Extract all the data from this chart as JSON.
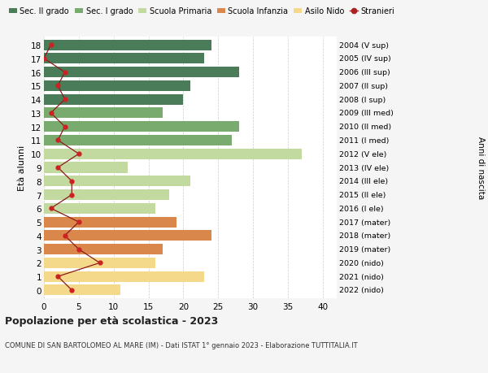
{
  "ages": [
    18,
    17,
    16,
    15,
    14,
    13,
    12,
    11,
    10,
    9,
    8,
    7,
    6,
    5,
    4,
    3,
    2,
    1,
    0
  ],
  "right_labels": [
    "2004 (V sup)",
    "2005 (IV sup)",
    "2006 (III sup)",
    "2007 (II sup)",
    "2008 (I sup)",
    "2009 (III med)",
    "2010 (II med)",
    "2011 (I med)",
    "2012 (V ele)",
    "2013 (IV ele)",
    "2014 (III ele)",
    "2015 (II ele)",
    "2016 (I ele)",
    "2017 (mater)",
    "2018 (mater)",
    "2019 (mater)",
    "2020 (nido)",
    "2021 (nido)",
    "2022 (nido)"
  ],
  "bar_values": [
    24,
    23,
    28,
    21,
    20,
    17,
    28,
    27,
    37,
    12,
    21,
    18,
    16,
    19,
    24,
    17,
    16,
    23,
    11
  ],
  "bar_colors": [
    "#4a7c59",
    "#4a7c59",
    "#4a7c59",
    "#4a7c59",
    "#4a7c59",
    "#7aab6e",
    "#7aab6e",
    "#7aab6e",
    "#c2d9a0",
    "#c2d9a0",
    "#c2d9a0",
    "#c2d9a0",
    "#c2d9a0",
    "#d9874a",
    "#d9874a",
    "#d9874a",
    "#f5d98a",
    "#f5d98a",
    "#f5d98a"
  ],
  "stranieri_values": [
    1,
    0,
    3,
    2,
    3,
    1,
    3,
    2,
    5,
    2,
    4,
    4,
    1,
    5,
    3,
    5,
    8,
    2,
    4
  ],
  "legend_labels": [
    "Sec. II grado",
    "Sec. I grado",
    "Scuola Primaria",
    "Scuola Infanzia",
    "Asilo Nido",
    "Stranieri"
  ],
  "legend_colors": [
    "#4a7c59",
    "#7aab6e",
    "#c2d9a0",
    "#d9874a",
    "#f5d98a",
    "#aa2222"
  ],
  "ylabel_left": "Età alunni",
  "ylabel_right": "Anni di nascita",
  "title": "Popolazione per età scolastica - 2023",
  "subtitle": "COMUNE DI SAN BARTOLOMEO AL MARE (IM) - Dati ISTAT 1° gennaio 2023 - Elaborazione TUTTITALIA.IT",
  "xlim": [
    0,
    42
  ],
  "background_color": "#f5f5f5",
  "bar_background": "#ffffff",
  "grid_color": "#cccccc"
}
